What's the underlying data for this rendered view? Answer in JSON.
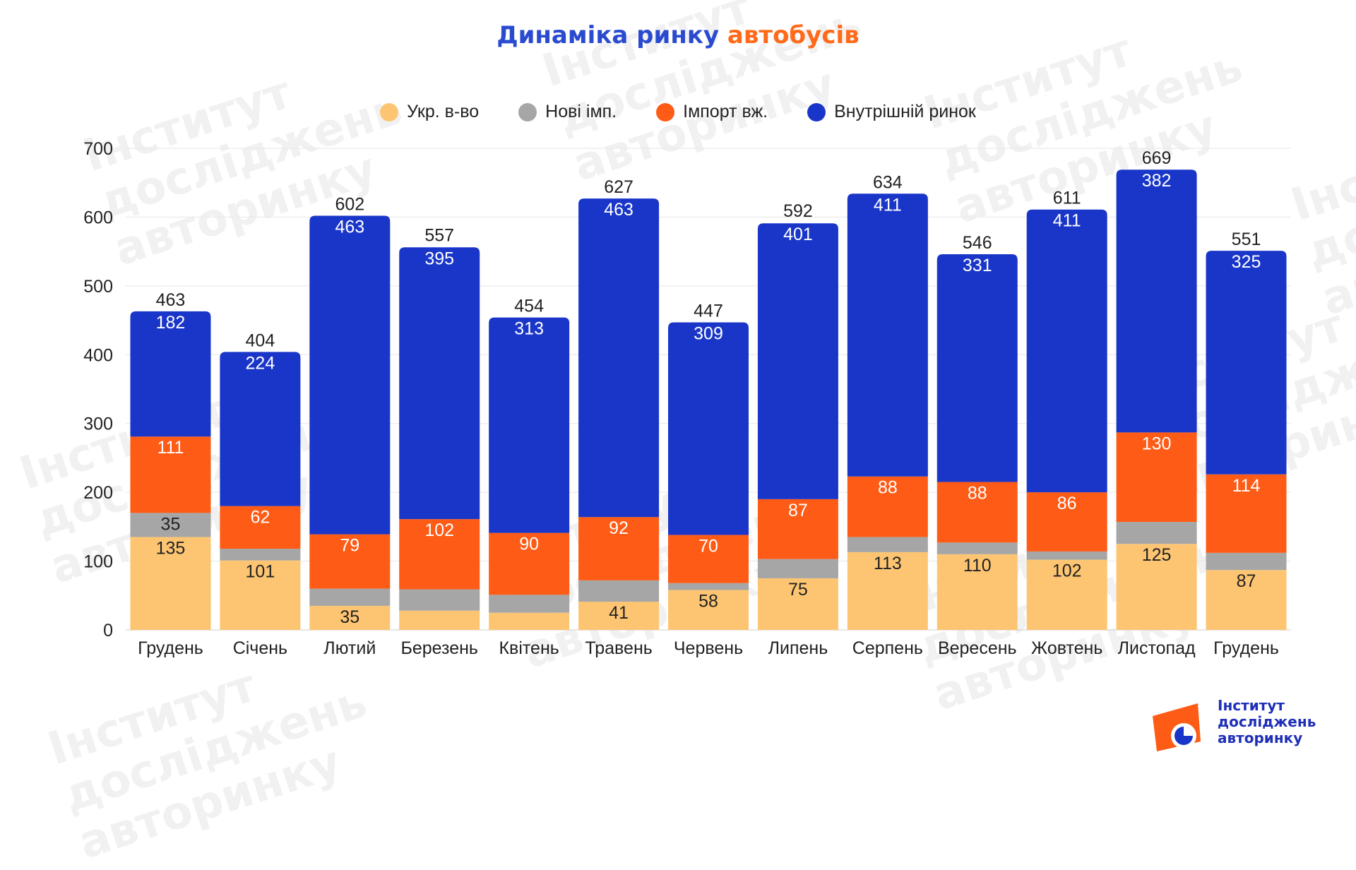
{
  "title": {
    "part1": "Динаміка ринку",
    "part2": "автобусів"
  },
  "colors": {
    "ukr": "#fdc572",
    "new_imp": "#a6a6a6",
    "used_imp": "#fe5b16",
    "domestic": "#1a36c9",
    "title_blue": "#2a4bd0",
    "title_orange": "#ff6a1a"
  },
  "legend": [
    {
      "label": "Укр. в-во",
      "color": "#fdc572"
    },
    {
      "label": "Нові імп.",
      "color": "#a6a6a6"
    },
    {
      "label": "Імпорт вж.",
      "color": "#fe5b16"
    },
    {
      "label": "Внутрішній ринок",
      "color": "#1a36c9"
    }
  ],
  "chart_data": {
    "type": "bar",
    "stacked": true,
    "title": "Динаміка ринку автобусів",
    "categories": [
      "Грудень",
      "Січень",
      "Лютий",
      "Березень",
      "Квітень",
      "Травень",
      "Червень",
      "Липень",
      "Серпень",
      "Вересень",
      "Жовтень",
      "Листопад",
      "Грудень"
    ],
    "series": [
      {
        "name": "Укр. в-во",
        "values": [
          135,
          101,
          35,
          28,
          25,
          41,
          58,
          75,
          113,
          110,
          102,
          125,
          87
        ],
        "labels": [
          "135",
          "101",
          "35",
          "",
          "",
          "41",
          "58",
          "75",
          "113",
          "110",
          "102",
          "125",
          "87"
        ]
      },
      {
        "name": "Нові імп.",
        "values": [
          35,
          17,
          25,
          31,
          26,
          31,
          10,
          28,
          22,
          17,
          12,
          32,
          25
        ],
        "labels": [
          "35",
          "",
          "",
          "",
          "",
          "",
          "",
          "",
          "",
          "",
          "",
          "",
          ""
        ]
      },
      {
        "name": "Імпорт вж.",
        "values": [
          111,
          62,
          79,
          102,
          90,
          92,
          70,
          87,
          88,
          88,
          86,
          130,
          114
        ],
        "labels": [
          "111",
          "62",
          "79",
          "102",
          "90",
          "92",
          "70",
          "87",
          "88",
          "88",
          "86",
          "130",
          "114"
        ]
      },
      {
        "name": "Внутрішній ринок",
        "values": [
          182,
          224,
          463,
          395,
          313,
          463,
          309,
          401,
          411,
          331,
          411,
          382,
          325
        ],
        "labels": [
          "182",
          "224",
          "463",
          "395",
          "313",
          "463",
          "309",
          "401",
          "411",
          "331",
          "411",
          "382",
          "325"
        ]
      }
    ],
    "totals": [
      463,
      404,
      602,
      557,
      454,
      627,
      447,
      592,
      634,
      546,
      611,
      669,
      551
    ],
    "ylim": [
      0,
      700
    ],
    "yticks": [
      0,
      100,
      200,
      300,
      400,
      500,
      600,
      700
    ],
    "grid": true,
    "legend_position": "top"
  },
  "watermark": {
    "lines": [
      "Інститут",
      "досліджень",
      "авторинку"
    ]
  },
  "logo": {
    "lines": [
      "Інститут",
      "досліджень",
      "авторинку"
    ]
  }
}
